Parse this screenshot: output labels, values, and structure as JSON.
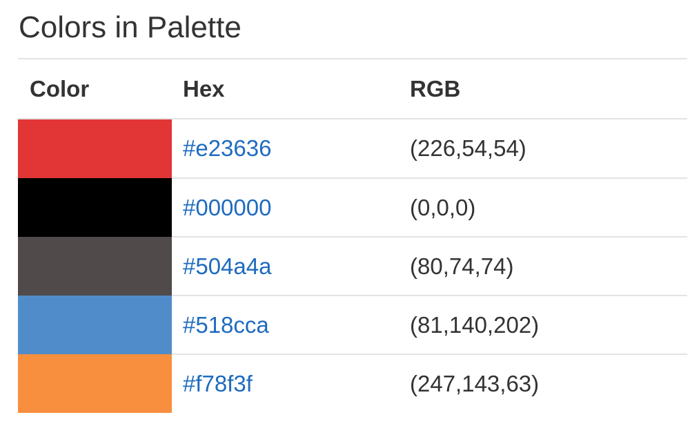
{
  "page": {
    "title": "Colors in Palette"
  },
  "table": {
    "headers": {
      "color": "Color",
      "hex": "Hex",
      "rgb": "RGB"
    },
    "rows": [
      {
        "color": "#e23636",
        "hex": "#e23636",
        "rgb": "(226,54,54)"
      },
      {
        "color": "#000000",
        "hex": "#000000",
        "rgb": "(0,0,0)"
      },
      {
        "color": "#504a4a",
        "hex": "#504a4a",
        "rgb": "(80,74,74)"
      },
      {
        "color": "#518cca",
        "hex": "#518cca",
        "rgb": "(81,140,202)"
      },
      {
        "color": "#f78f3f",
        "hex": "#f78f3f",
        "rgb": "(247,143,63)"
      }
    ]
  },
  "colors": {
    "link": "#1e6bbf",
    "text": "#333333",
    "divider": "#e3e3e3"
  }
}
